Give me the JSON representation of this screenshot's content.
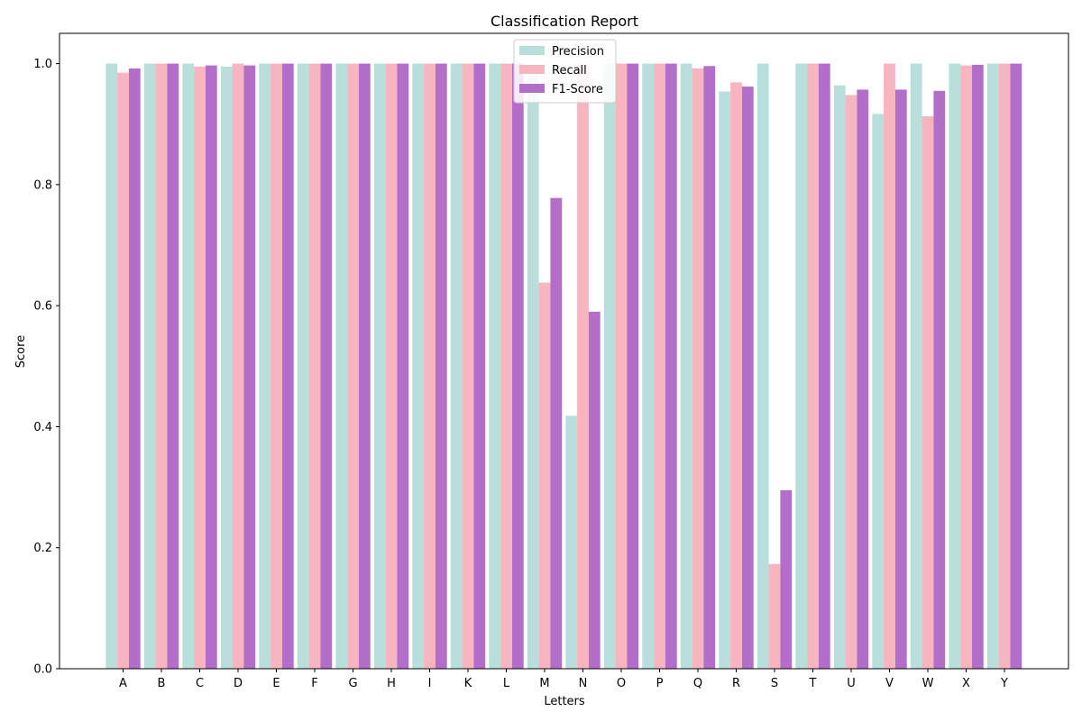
{
  "chart_data": {
    "type": "bar",
    "title": "Classification Report",
    "xlabel": "Letters",
    "ylabel": "Score",
    "ylim": [
      0,
      1.05
    ],
    "yticks": [
      0.0,
      0.2,
      0.4,
      0.6,
      0.8,
      1.0
    ],
    "ytick_labels": [
      "0.0",
      "0.2",
      "0.4",
      "0.6",
      "0.8",
      "1.0"
    ],
    "grid": false,
    "legend_position": "top-center",
    "categories": [
      "A",
      "B",
      "C",
      "D",
      "E",
      "F",
      "G",
      "H",
      "I",
      "K",
      "L",
      "M",
      "N",
      "O",
      "P",
      "Q",
      "R",
      "S",
      "T",
      "U",
      "V",
      "W",
      "X",
      "Y"
    ],
    "series": [
      {
        "name": "Precision",
        "color": "#b9dfdc",
        "values": [
          1.0,
          1.0,
          1.0,
          0.995,
          1.0,
          1.0,
          1.0,
          1.0,
          1.0,
          1.0,
          1.0,
          0.998,
          0.418,
          1.0,
          1.0,
          1.0,
          0.954,
          1.0,
          1.0,
          0.964,
          0.917,
          1.0,
          1.0,
          1.0
        ]
      },
      {
        "name": "Recall",
        "color": "#f6b5bf",
        "values": [
          0.985,
          1.0,
          0.995,
          1.0,
          1.0,
          1.0,
          1.0,
          1.0,
          1.0,
          1.0,
          1.0,
          0.638,
          0.999,
          1.0,
          1.0,
          0.992,
          0.969,
          0.173,
          1.0,
          0.948,
          1.0,
          0.913,
          0.997,
          1.0
        ]
      },
      {
        "name": "F1-Score",
        "color": "#b26ec9",
        "values": [
          0.992,
          1.0,
          0.997,
          0.997,
          1.0,
          1.0,
          1.0,
          1.0,
          1.0,
          1.0,
          1.0,
          0.778,
          0.59,
          1.0,
          1.0,
          0.996,
          0.962,
          0.295,
          1.0,
          0.957,
          0.957,
          0.955,
          0.998,
          1.0
        ]
      }
    ]
  }
}
